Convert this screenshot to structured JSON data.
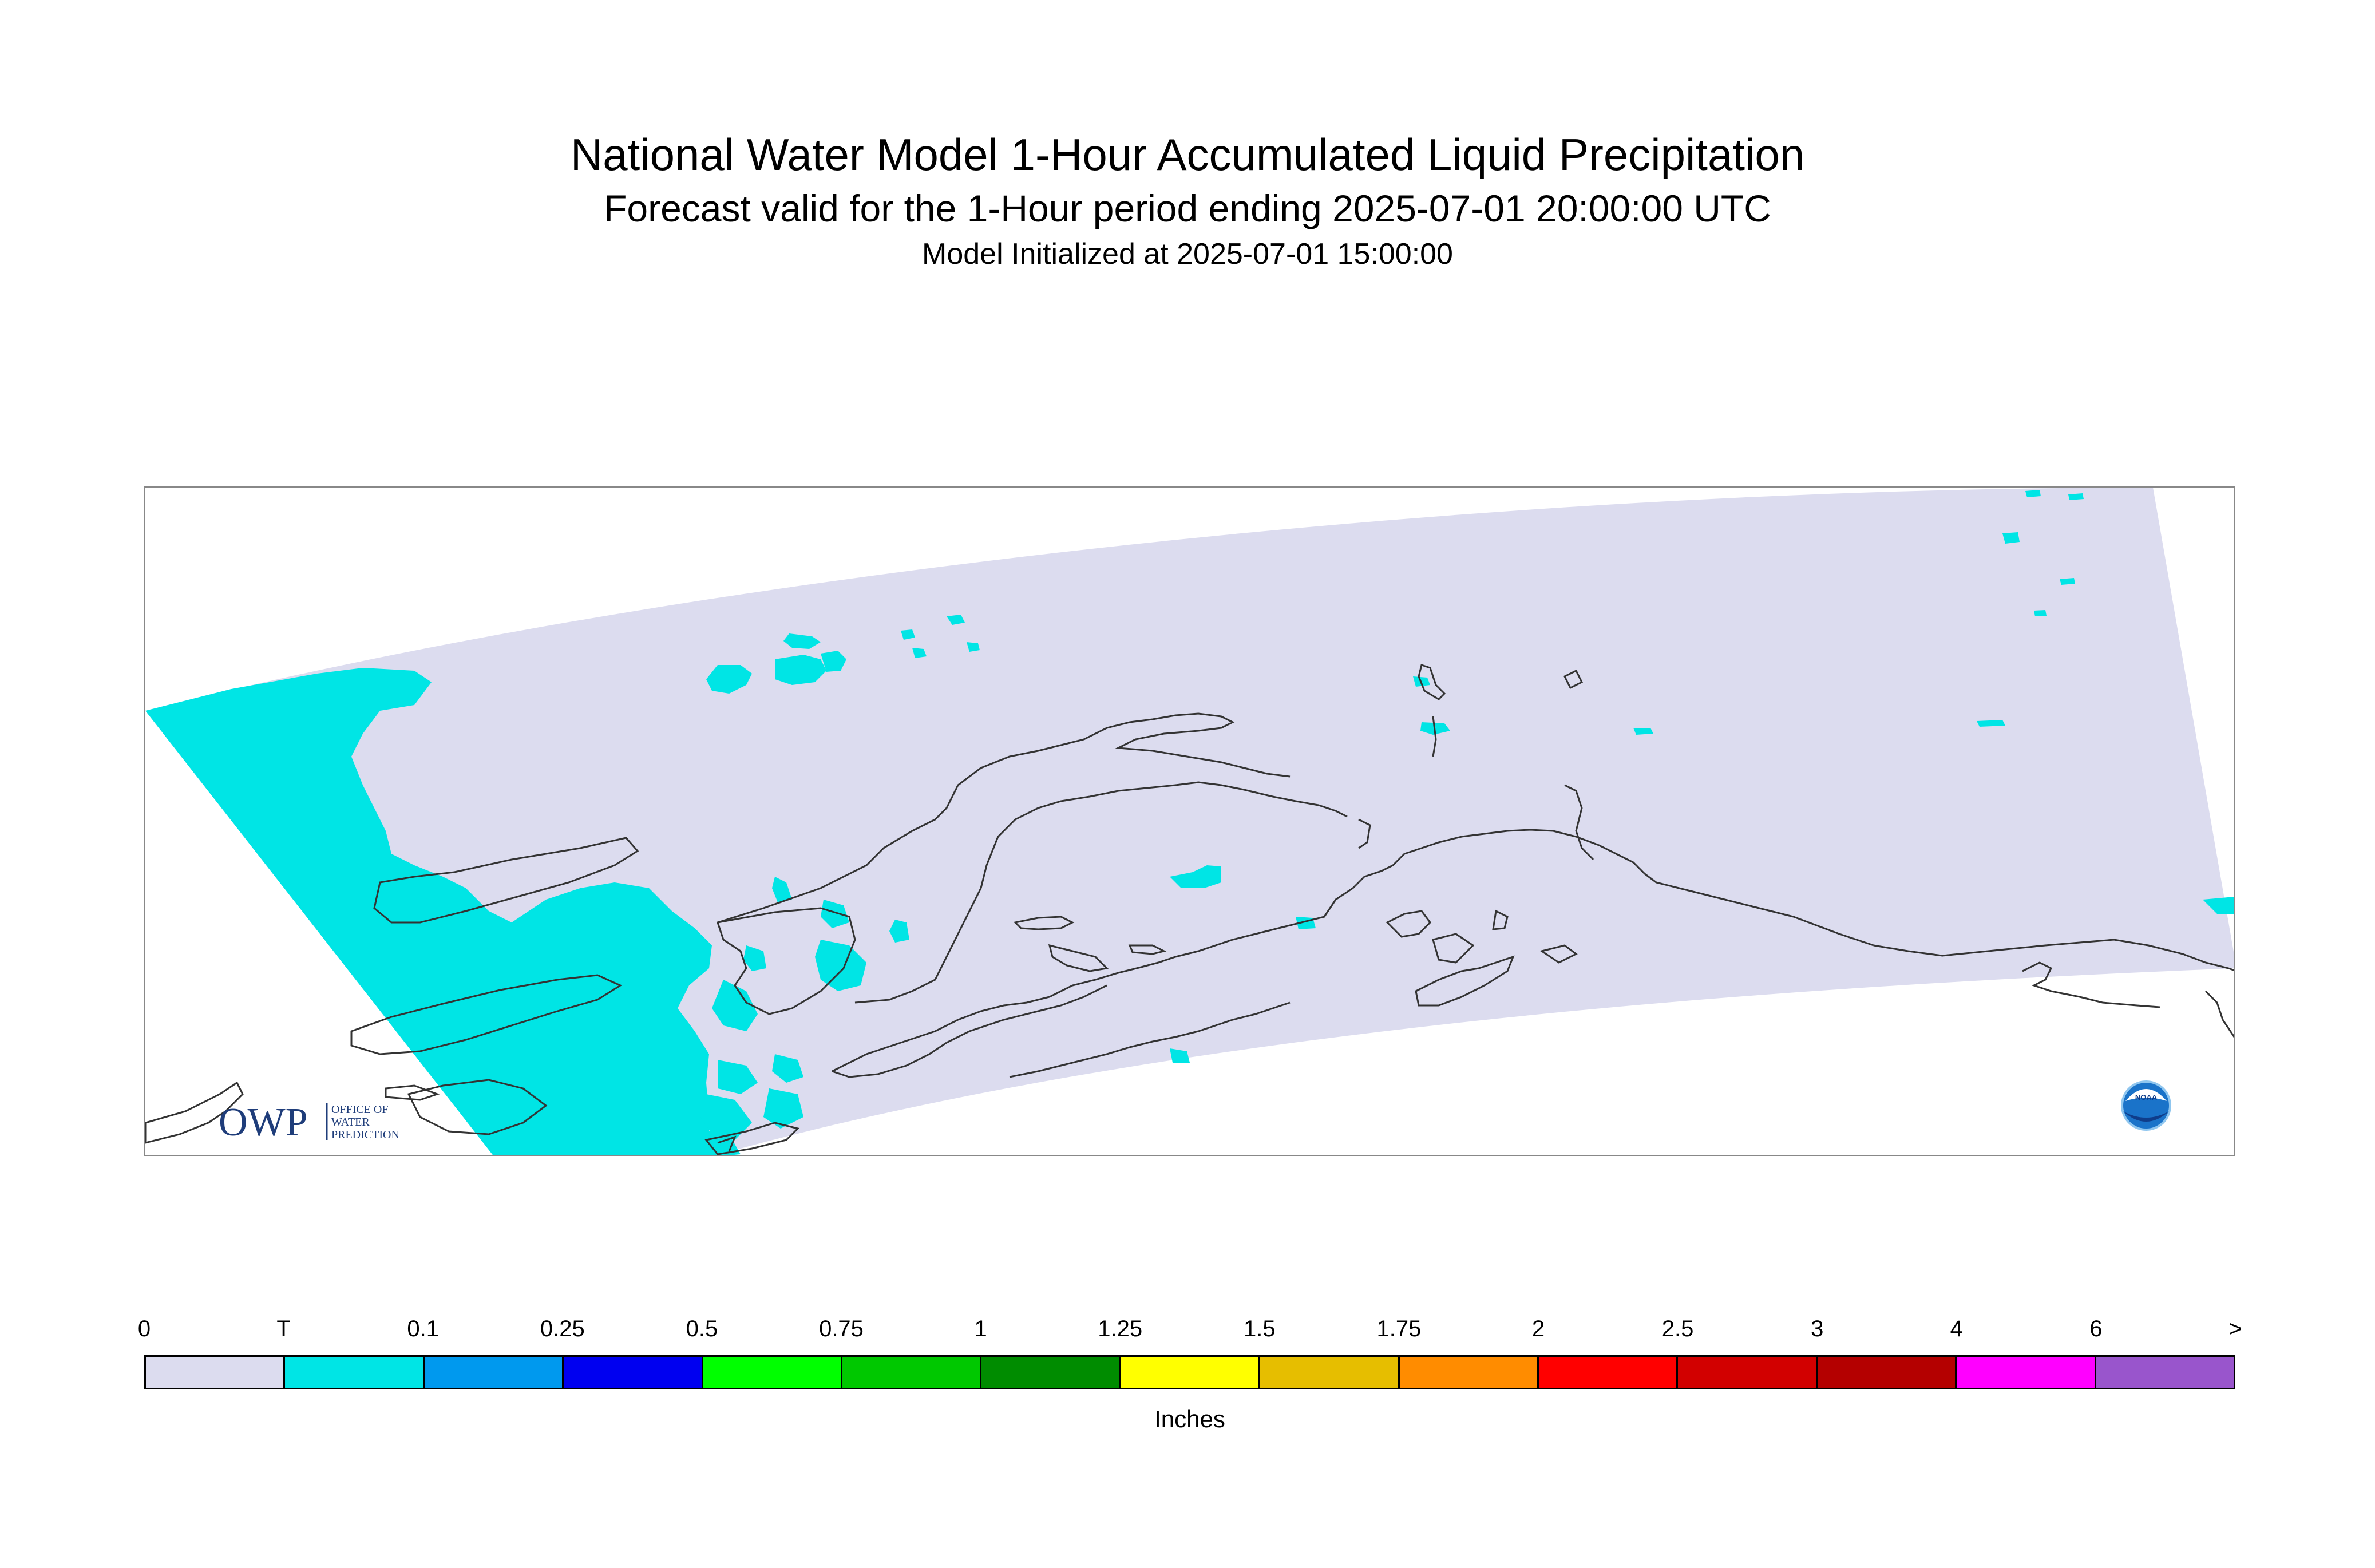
{
  "title": {
    "main": "National Water Model 1-Hour Accumulated Liquid Precipitation",
    "sub": "Forecast valid for the 1-Hour period ending 2025-07-01 20:00:00 UTC",
    "init": "Model Initialized at 2025-07-01 15:00:00"
  },
  "map": {
    "domain_fill_color": "#dcdcef",
    "precip_fill_color": "#00e5e5",
    "coastline_color": "#333333",
    "logos": {
      "owp": {
        "mark": "OWP",
        "line1": "OFFICE OF",
        "line2": "WATER",
        "line3": "PREDICTION",
        "color": "#1f3d7a"
      },
      "noaa": {
        "text": "NOAA",
        "icon": "noaa-logo-icon"
      }
    }
  },
  "legend": {
    "tick_labels": [
      "0",
      "T",
      "0.1",
      "0.25",
      "0.5",
      "0.75",
      "1",
      "1.25",
      "1.5",
      "1.75",
      "2",
      "2.5",
      "3",
      "4",
      "6",
      ">"
    ],
    "colors": [
      "#dcdcef",
      "#00e5e5",
      "#0099ee",
      "#0000f0",
      "#00ff00",
      "#00c800",
      "#008c00",
      "#ffff00",
      "#e6be00",
      "#ff8c00",
      "#ff0000",
      "#d20000",
      "#b40000",
      "#ff00ff",
      "#9955cc"
    ],
    "units": "Inches"
  }
}
